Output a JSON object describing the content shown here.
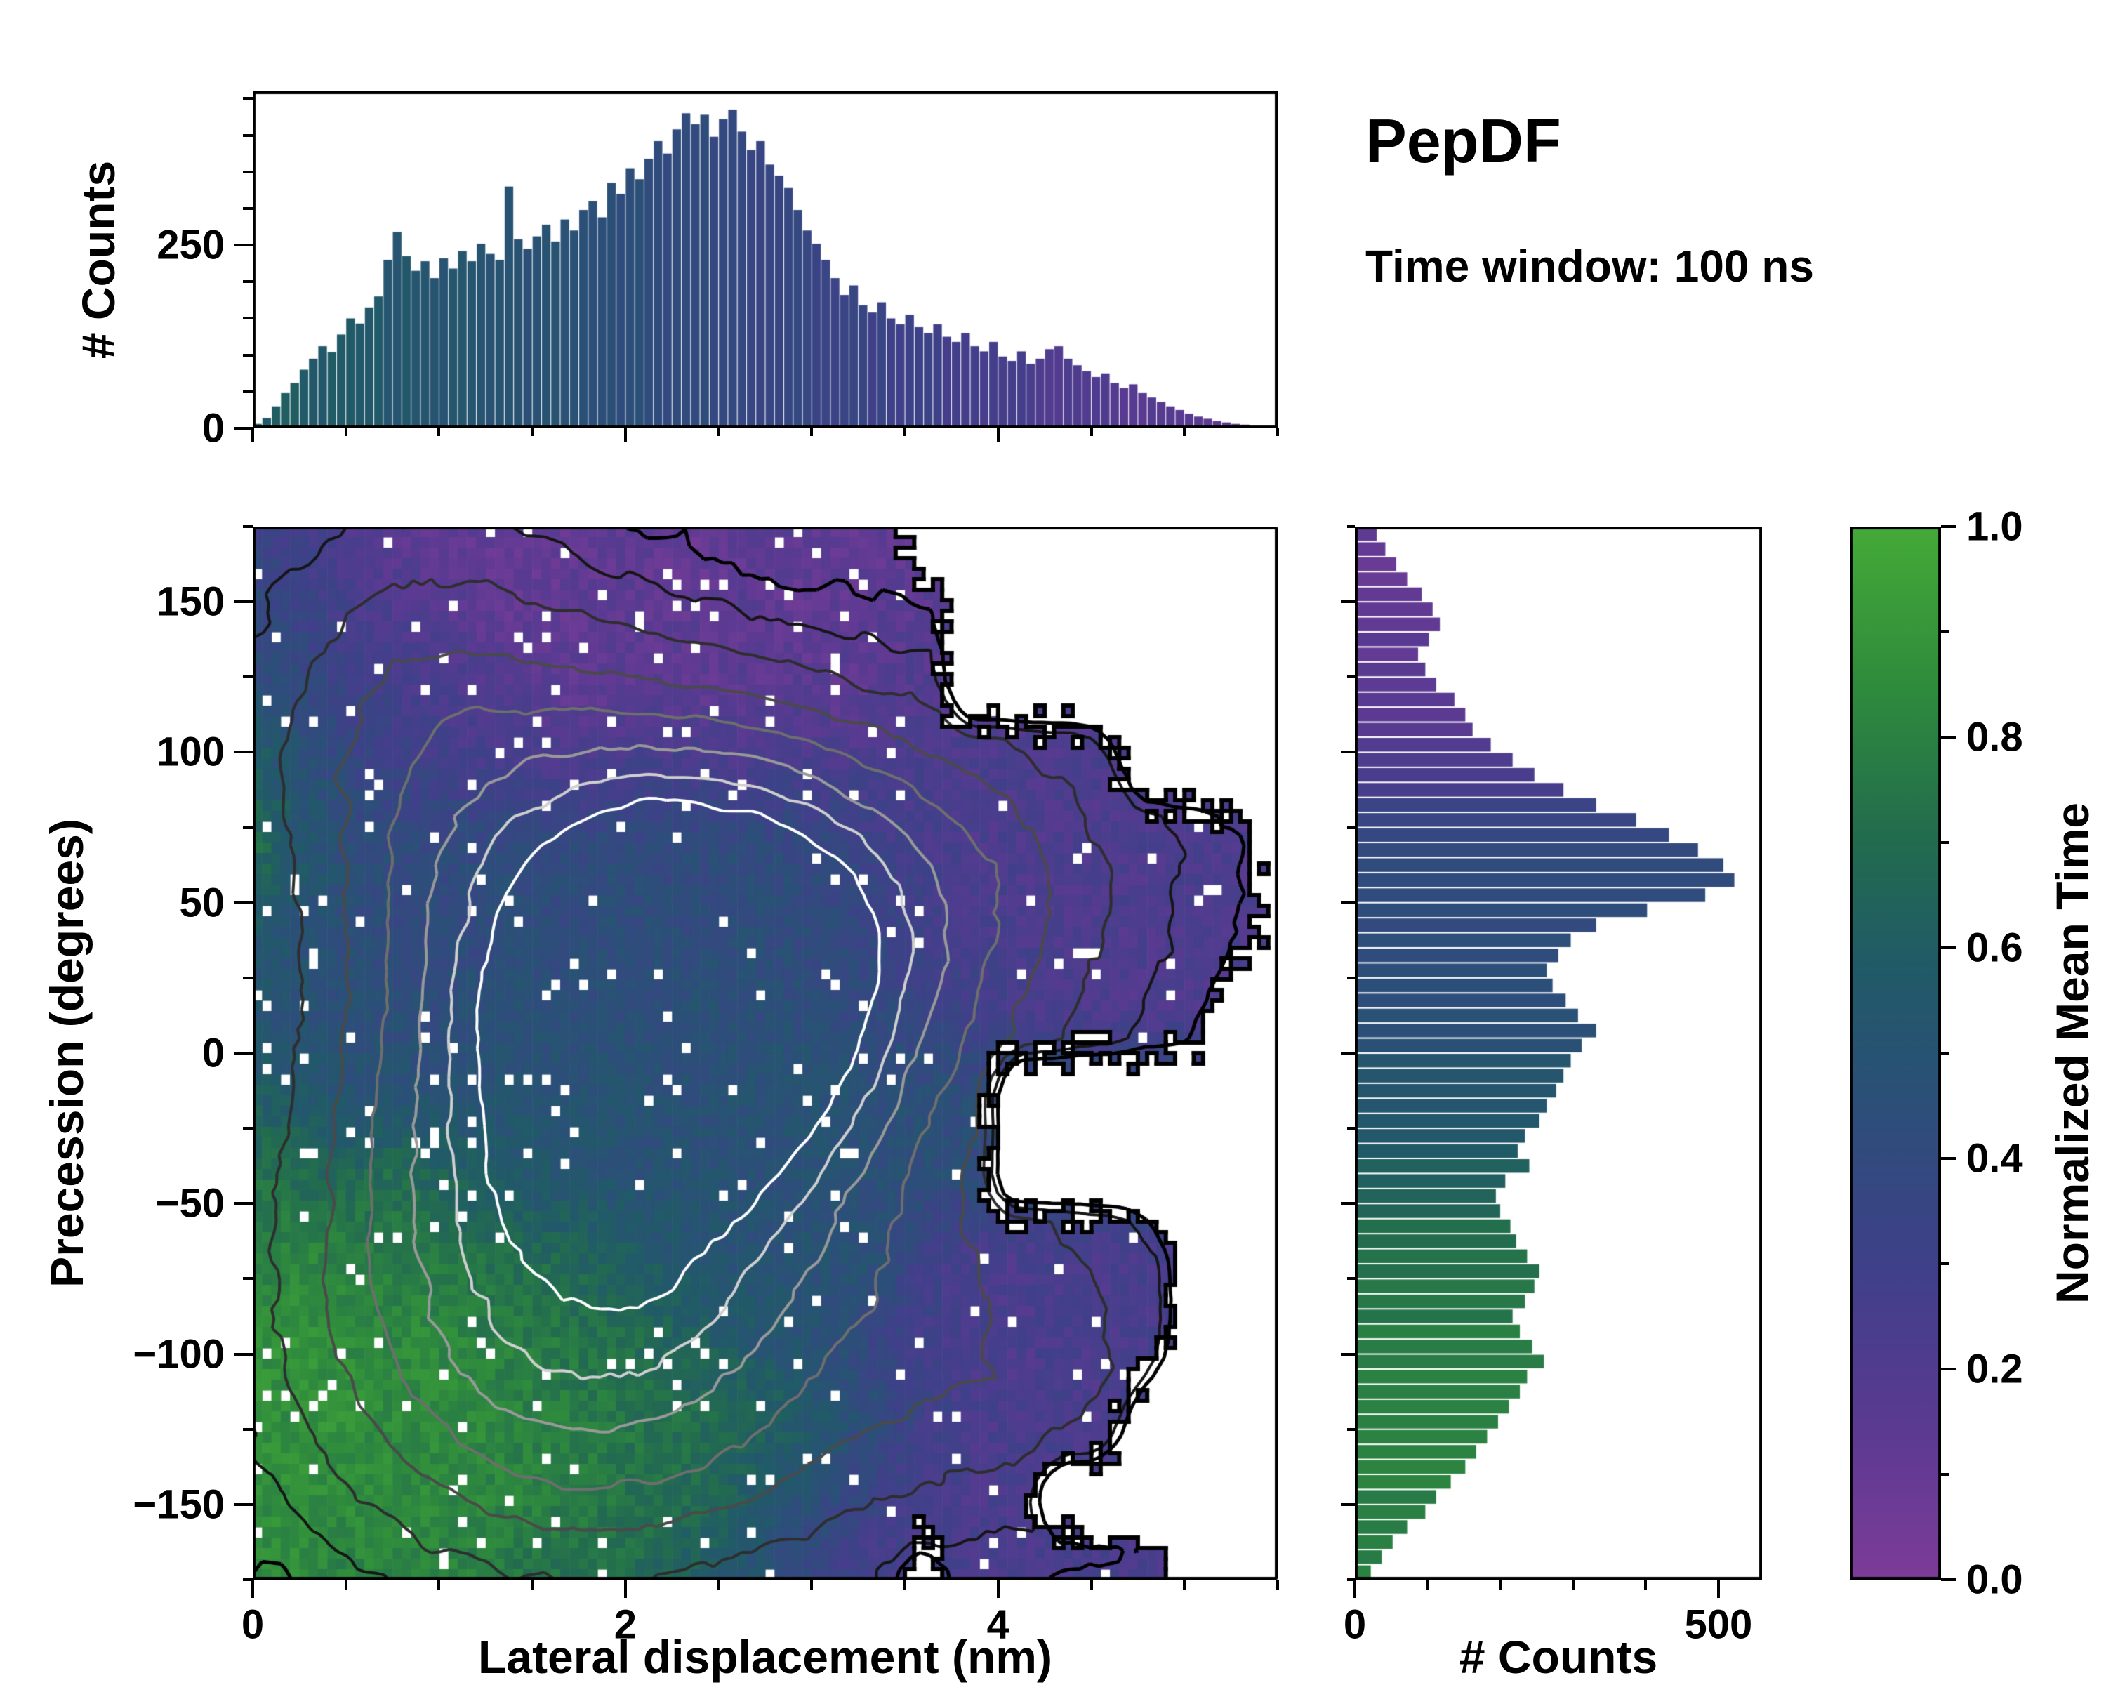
{
  "chart_data": {
    "type": "heatmap",
    "title": "PepDF",
    "subtitle": "Time window: 100 ns",
    "seed": 42,
    "colormap_stops": [
      [
        0.0,
        "#7d3c98"
      ],
      [
        0.15,
        "#5a3a92"
      ],
      [
        0.3,
        "#3f4089"
      ],
      [
        0.45,
        "#2c4f79"
      ],
      [
        0.58,
        "#215a68"
      ],
      [
        0.7,
        "#226b4f"
      ],
      [
        0.85,
        "#2f8c3c"
      ],
      [
        1.0,
        "#44aa38"
      ]
    ],
    "colorbar": {
      "label": "Normalized Mean Time",
      "range": [
        0.0,
        1.0
      ],
      "ticks": [
        0.0,
        0.2,
        0.4,
        0.6,
        0.8,
        1.0
      ],
      "minor_ticks": [
        0.1,
        0.3,
        0.5,
        0.7,
        0.9
      ]
    },
    "joint": {
      "xlabel": "Lateral displacement (nm)",
      "ylabel": "Precession (degrees)",
      "xlim": [
        0,
        5.5
      ],
      "ylim": [
        -175,
        175
      ],
      "xticks": [
        0,
        2,
        4
      ],
      "xticks_minor": [
        0.5,
        1,
        1.5,
        2.5,
        3,
        3.5,
        4.5,
        5,
        5.5
      ],
      "yticks": [
        -150,
        -100,
        -50,
        0,
        50,
        100,
        150
      ],
      "yticks_minor": [
        -175,
        -125,
        -75,
        -25,
        25,
        75,
        125,
        175
      ],
      "cells_x": 110,
      "cells_y": 100,
      "speckle_fraction": 0.035,
      "occupancy": [
        "111111111111111000000000",
        "111111111111111100000000",
        "111111111111111100000000",
        "111111111111111111110000",
        "111111111111111111111110",
        "111111111111111111111110",
        "111111111111111111111100",
        "111111111111111110000000",
        "111111111111111110000000",
        "111111111111111111111000",
        "111111111111111111111000",
        "111111111111111111110000",
        "111111111111111111000000",
        "111111111111111011111000"
      ],
      "mean_time": [
        [
          0.35,
          0.3,
          0.22,
          0.16,
          0.13,
          0.12,
          0.1,
          0.12,
          0.14,
          0.12,
          0.1,
          0.13,
          0.15,
          0.12,
          0.12,
          0.12,
          0.12,
          0.12,
          0.12,
          0.12,
          0.12,
          0.12,
          0.12,
          0.12
        ],
        [
          0.4,
          0.35,
          0.28,
          0.22,
          0.18,
          0.14,
          0.12,
          0.12,
          0.15,
          0.12,
          0.13,
          0.15,
          0.12,
          0.13,
          0.16,
          0.15,
          0.15,
          0.15,
          0.15,
          0.15,
          0.15,
          0.15,
          0.15,
          0.15
        ],
        [
          0.45,
          0.4,
          0.34,
          0.28,
          0.24,
          0.2,
          0.16,
          0.13,
          0.13,
          0.16,
          0.13,
          0.14,
          0.16,
          0.14,
          0.15,
          0.2,
          0.2,
          0.2,
          0.2,
          0.2,
          0.2,
          0.2,
          0.2,
          0.2
        ],
        [
          0.62,
          0.5,
          0.4,
          0.34,
          0.3,
          0.28,
          0.26,
          0.24,
          0.26,
          0.28,
          0.26,
          0.24,
          0.26,
          0.24,
          0.25,
          0.23,
          0.22,
          0.23,
          0.22,
          0.23,
          0.22,
          0.22,
          0.22,
          0.22
        ],
        [
          0.7,
          0.56,
          0.46,
          0.42,
          0.4,
          0.41,
          0.43,
          0.41,
          0.43,
          0.41,
          0.41,
          0.43,
          0.41,
          0.39,
          0.32,
          0.27,
          0.23,
          0.22,
          0.21,
          0.22,
          0.23,
          0.22,
          0.22,
          0.22
        ],
        [
          0.55,
          0.5,
          0.46,
          0.43,
          0.42,
          0.41,
          0.45,
          0.42,
          0.45,
          0.43,
          0.42,
          0.45,
          0.42,
          0.4,
          0.36,
          0.31,
          0.26,
          0.23,
          0.22,
          0.21,
          0.22,
          0.22,
          0.21,
          0.21
        ],
        [
          0.5,
          0.48,
          0.46,
          0.45,
          0.43,
          0.45,
          0.48,
          0.45,
          0.43,
          0.45,
          0.48,
          0.45,
          0.45,
          0.43,
          0.4,
          0.36,
          0.3,
          0.26,
          0.23,
          0.22,
          0.21,
          0.22,
          0.21,
          0.21
        ],
        [
          0.6,
          0.55,
          0.5,
          0.48,
          0.5,
          0.48,
          0.5,
          0.48,
          0.5,
          0.48,
          0.46,
          0.48,
          0.5,
          0.48,
          0.46,
          0.45,
          0.43,
          0.44,
          0.44,
          0.44,
          0.44,
          0.44,
          0.44,
          0.44
        ],
        [
          0.72,
          0.68,
          0.66,
          0.7,
          0.65,
          0.6,
          0.56,
          0.52,
          0.5,
          0.48,
          0.5,
          0.48,
          0.46,
          0.48,
          0.46,
          0.45,
          0.43,
          0.44,
          0.44,
          0.44,
          0.44,
          0.44,
          0.44,
          0.44
        ],
        [
          0.8,
          0.82,
          0.8,
          0.78,
          0.75,
          0.72,
          0.7,
          0.66,
          0.61,
          0.56,
          0.52,
          0.49,
          0.5,
          0.48,
          0.46,
          0.32,
          0.26,
          0.23,
          0.25,
          0.23,
          0.25,
          0.24,
          0.24,
          0.24
        ],
        [
          0.85,
          0.88,
          0.85,
          0.83,
          0.85,
          0.8,
          0.78,
          0.75,
          0.71,
          0.68,
          0.61,
          0.56,
          0.51,
          0.46,
          0.36,
          0.29,
          0.25,
          0.22,
          0.25,
          0.23,
          0.25,
          0.24,
          0.24,
          0.24
        ],
        [
          0.88,
          0.85,
          0.88,
          0.85,
          0.83,
          0.85,
          0.8,
          0.78,
          0.76,
          0.72,
          0.7,
          0.66,
          0.6,
          0.51,
          0.41,
          0.31,
          0.26,
          0.23,
          0.25,
          0.23,
          0.25,
          0.24,
          0.24,
          0.24
        ],
        [
          0.85,
          0.88,
          0.85,
          0.83,
          0.85,
          0.82,
          0.8,
          0.78,
          0.75,
          0.72,
          0.68,
          0.61,
          0.51,
          0.41,
          0.31,
          0.26,
          0.23,
          0.25,
          0.24,
          0.24,
          0.24,
          0.24,
          0.24,
          0.24
        ],
        [
          0.82,
          0.85,
          0.8,
          0.82,
          0.8,
          0.78,
          0.75,
          0.72,
          0.7,
          0.66,
          0.6,
          0.51,
          0.41,
          0.31,
          0.26,
          0.23,
          0.25,
          0.24,
          0.24,
          0.24,
          0.24,
          0.24,
          0.24,
          0.24
        ]
      ],
      "contours": {
        "grid": 110,
        "noise": 0.045,
        "blobs": [
          {
            "x": 2.35,
            "y": 45,
            "sx": 0.85,
            "sy": 52,
            "a": 1.0
          },
          {
            "x": 2.25,
            "y": -5,
            "sx": 1.0,
            "sy": 48,
            "a": 0.72
          },
          {
            "x": 1.3,
            "y": -80,
            "sx": 0.95,
            "sy": 62,
            "a": 0.52
          },
          {
            "x": 2.3,
            "y": -105,
            "sx": 1.0,
            "sy": 52,
            "a": 0.45
          },
          {
            "x": 0.9,
            "y": 105,
            "sx": 0.75,
            "sy": 55,
            "a": 0.42
          },
          {
            "x": 3.9,
            "y": 60,
            "sx": 0.85,
            "sy": 45,
            "a": 0.35
          },
          {
            "x": 4.2,
            "y": -100,
            "sx": 0.75,
            "sy": 45,
            "a": 0.3
          }
        ],
        "levels": [
          {
            "value": 0.1,
            "color": "#000000",
            "width": 5
          },
          {
            "value": 0.18,
            "color": "#161616",
            "width": 4
          },
          {
            "value": 0.3,
            "color": "#2e2e2e",
            "width": 4
          },
          {
            "value": 0.44,
            "color": "#4a4a4a",
            "width": 4
          },
          {
            "value": 0.58,
            "color": "#6e6e6e",
            "width": 4
          },
          {
            "value": 0.74,
            "color": "#999999",
            "width": 4
          },
          {
            "value": 0.88,
            "color": "#cfcfcf",
            "width": 4
          },
          {
            "value": 1.02,
            "color": "#ffffff",
            "width": 4
          }
        ]
      }
    },
    "top_marginal": {
      "ylabel": "# Counts",
      "ylim": [
        0,
        460
      ],
      "yticks": [
        0,
        250
      ],
      "yticks_minor": [
        50,
        100,
        150,
        200,
        300,
        350,
        400,
        450
      ],
      "bin_start": 0,
      "bin_width": 0.05,
      "counts": [
        6,
        14,
        30,
        48,
        62,
        80,
        95,
        112,
        104,
        128,
        150,
        143,
        165,
        180,
        230,
        268,
        235,
        215,
        228,
        205,
        232,
        218,
        242,
        228,
        252,
        238,
        230,
        330,
        258,
        245,
        262,
        278,
        255,
        285,
        270,
        298,
        310,
        288,
        335,
        320,
        355,
        340,
        368,
        392,
        375,
        408,
        430,
        415,
        428,
        398,
        422,
        435,
        405,
        380,
        392,
        360,
        345,
        328,
        298,
        270,
        252,
        230,
        205,
        182,
        195,
        168,
        158,
        172,
        150,
        142,
        155,
        138,
        130,
        142,
        125,
        118,
        130,
        112,
        105,
        118,
        98,
        92,
        105,
        88,
        95,
        108,
        112,
        95,
        86,
        78,
        70,
        75,
        62,
        55,
        60,
        48,
        42,
        36,
        30,
        25,
        20,
        16,
        13,
        10,
        8,
        6,
        5,
        3,
        2,
        1
      ],
      "color_profile": [
        [
          0,
          0.6
        ],
        [
          1,
          0.52
        ],
        [
          2,
          0.44
        ],
        [
          2.5,
          0.4
        ],
        [
          3,
          0.36
        ],
        [
          3.5,
          0.32
        ],
        [
          4,
          0.25
        ],
        [
          4.5,
          0.2
        ],
        [
          5,
          0.15
        ],
        [
          5.5,
          0.1
        ]
      ]
    },
    "right_marginal": {
      "xlabel": "# Counts",
      "xlim": [
        0,
        560
      ],
      "xticks": [
        0,
        500
      ],
      "xticks_minor": [
        100,
        200,
        300,
        400
      ],
      "bin_start": -175,
      "bin_width": 5,
      "counts": [
        20,
        35,
        50,
        70,
        95,
        110,
        130,
        150,
        165,
        180,
        195,
        210,
        225,
        235,
        258,
        242,
        225,
        215,
        232,
        245,
        252,
        235,
        220,
        212,
        198,
        192,
        205,
        238,
        222,
        232,
        252,
        262,
        275,
        285,
        295,
        310,
        330,
        305,
        288,
        270,
        262,
        278,
        295,
        330,
        400,
        480,
        520,
        505,
        470,
        430,
        385,
        330,
        285,
        245,
        215,
        185,
        160,
        150,
        135,
        110,
        95,
        85,
        100,
        115,
        105,
        90,
        70,
        55,
        40,
        28
      ],
      "color_profile": [
        [
          -175,
          0.78
        ],
        [
          -150,
          0.8
        ],
        [
          -120,
          0.8
        ],
        [
          -90,
          0.77
        ],
        [
          -60,
          0.7
        ],
        [
          -40,
          0.62
        ],
        [
          -20,
          0.55
        ],
        [
          0,
          0.5
        ],
        [
          20,
          0.44
        ],
        [
          40,
          0.42
        ],
        [
          60,
          0.4
        ],
        [
          80,
          0.34
        ],
        [
          100,
          0.2
        ],
        [
          120,
          0.15
        ],
        [
          140,
          0.12
        ],
        [
          175,
          0.1
        ]
      ]
    }
  }
}
